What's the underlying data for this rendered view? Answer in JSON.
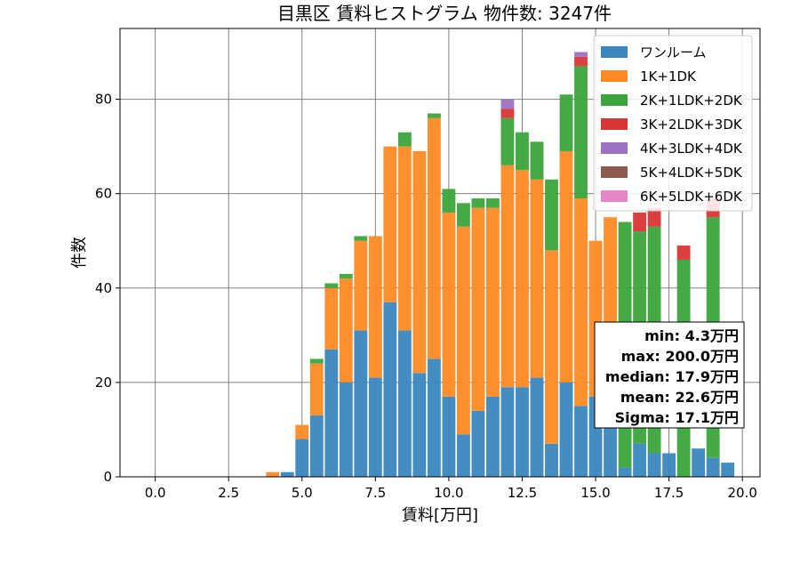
{
  "chart_data": {
    "type": "bar",
    "stacked": true,
    "title": "目黒区 賃料ヒストグラム  物件数: 3247件",
    "xlabel": "賃料[万円]",
    "ylabel": "件数",
    "xlim": [
      -1.2,
      20.6
    ],
    "ylim": [
      0,
      95
    ],
    "grid": true,
    "xticks": [
      0.0,
      2.5,
      5.0,
      7.5,
      10.0,
      12.5,
      15.0,
      17.5,
      20.0
    ],
    "xtick_labels": [
      "0.0",
      "2.5",
      "5.0",
      "7.5",
      "10.0",
      "12.5",
      "15.0",
      "17.5",
      "20.0"
    ],
    "yticks": [
      0,
      20,
      40,
      60,
      80
    ],
    "ytick_labels": [
      "0",
      "20",
      "40",
      "60",
      "80"
    ],
    "bin_width": 0.5,
    "x": [
      4.0,
      4.5,
      5.0,
      5.5,
      6.0,
      6.5,
      7.0,
      7.5,
      8.0,
      8.5,
      9.0,
      9.5,
      10.0,
      10.5,
      11.0,
      11.5,
      12.0,
      12.5,
      13.0,
      13.5,
      14.0,
      14.5,
      15.0,
      15.5,
      16.0,
      16.5,
      17.0,
      17.5,
      18.0,
      18.5,
      19.0,
      19.5
    ],
    "series": [
      {
        "name": "ワンルーム",
        "color": "#3a87c0",
        "values": [
          0,
          1,
          8,
          13,
          27,
          20,
          31,
          21,
          37,
          31,
          22,
          25,
          17,
          9,
          14,
          17,
          19,
          19,
          21,
          7,
          20,
          15,
          17,
          11,
          2,
          7,
          5,
          5,
          0,
          6,
          4,
          3
        ]
      },
      {
        "name": "1K+1DK",
        "color": "#ff8a24",
        "values": [
          1,
          0,
          3,
          11,
          13,
          22,
          19,
          30,
          33,
          39,
          47,
          51,
          39,
          44,
          43,
          40,
          47,
          46,
          42,
          41,
          49,
          44,
          33,
          44,
          0,
          0,
          0,
          0,
          0,
          0,
          0,
          0
        ]
      },
      {
        "name": "2K+1LDK+2DK",
        "color": "#3ba53b",
        "values": [
          0,
          0,
          0,
          1,
          1,
          1,
          1,
          0,
          0,
          3,
          0,
          1,
          5,
          5,
          2,
          2,
          10,
          8,
          8,
          15,
          12,
          28,
          0,
          0,
          52,
          45,
          48,
          0,
          46,
          0,
          51,
          0
        ]
      },
      {
        "name": "3K+2LDK+3DK",
        "color": "#d83636",
        "values": [
          0,
          0,
          0,
          0,
          0,
          0,
          0,
          0,
          0,
          0,
          0,
          0,
          0,
          0,
          0,
          0,
          2,
          0,
          0,
          0,
          0,
          2,
          0,
          0,
          0,
          4,
          4,
          0,
          3,
          0,
          4,
          0
        ]
      },
      {
        "name": "4K+3LDK+4DK",
        "color": "#9c72c2",
        "values": [
          0,
          0,
          0,
          0,
          0,
          0,
          0,
          0,
          0,
          0,
          0,
          0,
          0,
          0,
          0,
          0,
          2,
          0,
          0,
          0,
          0,
          1,
          0,
          0,
          0,
          0,
          0,
          0,
          0,
          0,
          0,
          0
        ]
      },
      {
        "name": "5K+4LDK+5DK",
        "color": "#8c5a4f",
        "values": [
          0,
          0,
          0,
          0,
          0,
          0,
          0,
          0,
          0,
          0,
          0,
          0,
          0,
          0,
          0,
          0,
          0,
          0,
          0,
          0,
          0,
          0,
          0,
          0,
          0,
          0,
          0,
          0,
          0,
          0,
          0,
          0
        ]
      },
      {
        "name": "6K+5LDK+6DK",
        "color": "#e586c8",
        "values": [
          0,
          0,
          0,
          0,
          0,
          0,
          0,
          0,
          0,
          0,
          0,
          0,
          0,
          0,
          0,
          0,
          0,
          0,
          0,
          0,
          0,
          0,
          0,
          0,
          0,
          0,
          0,
          0,
          0,
          0,
          0,
          0
        ]
      }
    ],
    "legend_position": "top-right",
    "stats_box": {
      "position": "right",
      "lines": [
        "min: 4.3万円",
        "max: 200.0万円",
        "median: 17.9万円",
        "mean: 22.6万円",
        "Sigma: 17.1万円"
      ]
    }
  }
}
